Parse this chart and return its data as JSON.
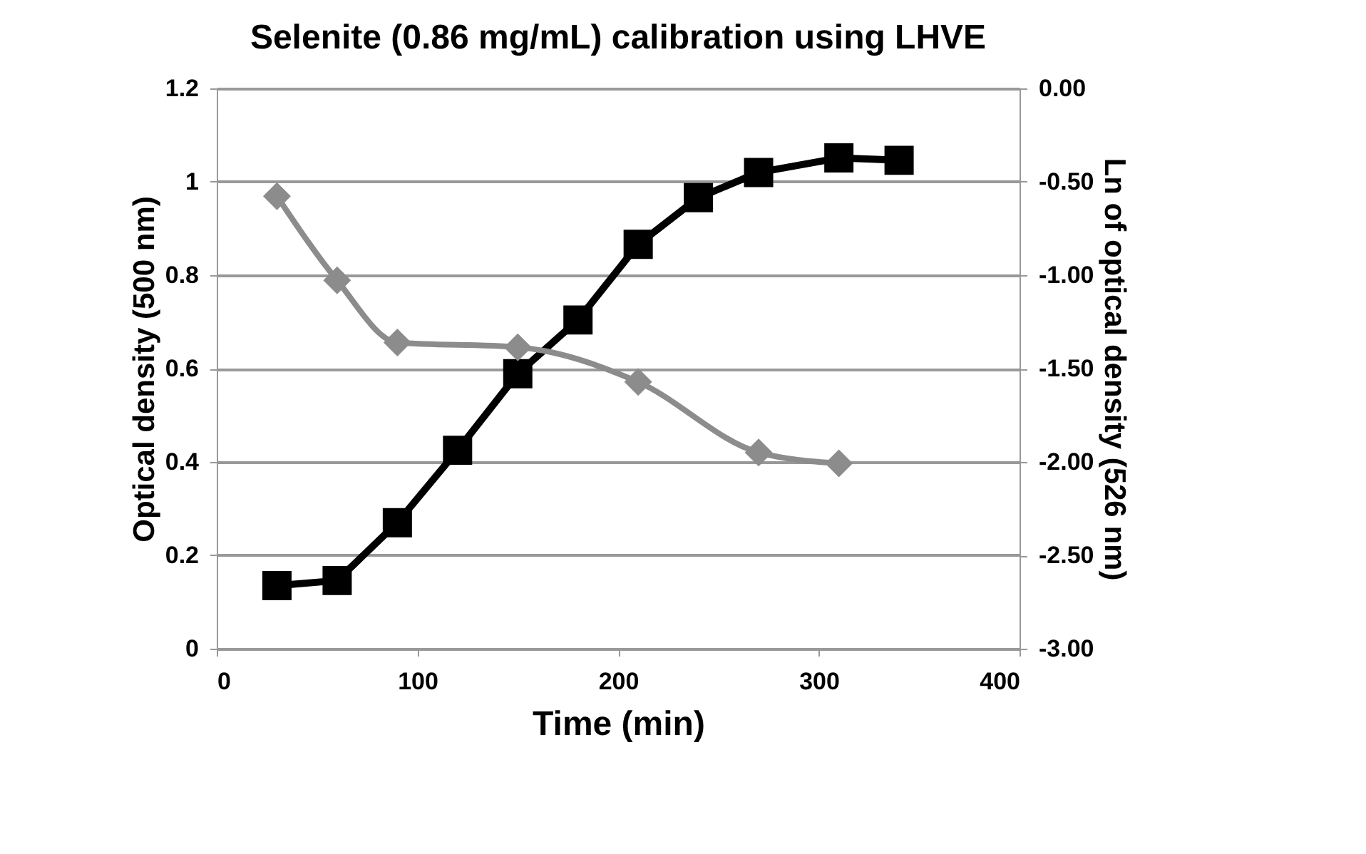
{
  "chart_data": {
    "type": "line",
    "title": "Selenite (0.86 mg/mL) calibration using LHVE",
    "xlabel": "Time (min)",
    "ylabel": "Optical density (500 nm)",
    "y2label": "Ln  of optical density (526 nm)",
    "xlim": [
      0,
      400
    ],
    "xticks": [
      0,
      100,
      200,
      300,
      400
    ],
    "ylim": [
      0,
      1.2
    ],
    "yticks": [
      0,
      0.2,
      0.4,
      0.6,
      0.8,
      1,
      1.2
    ],
    "y2lim": [
      -3,
      0
    ],
    "y2ticks": [
      {
        "value": -3,
        "label": "-3.00"
      },
      {
        "value": -2.5,
        "label": "-2.50"
      },
      {
        "value": -2,
        "label": "-2.00"
      },
      {
        "value": -1.5,
        "label": "-1.50"
      },
      {
        "value": -1,
        "label": "-1.00"
      },
      {
        "value": -0.5,
        "label": "-0.50"
      },
      {
        "value": 0,
        "label": "0.00"
      }
    ],
    "grid": "y",
    "legend": false,
    "line_style": "solid",
    "series": [
      {
        "color": "#000000",
        "marker": "square",
        "x": [
          30,
          60,
          90,
          120,
          150,
          180,
          210,
          240,
          270,
          310,
          340
        ],
        "values": [
          0.135,
          0.146,
          0.27,
          0.425,
          0.589,
          0.704,
          0.866,
          0.966,
          1.02,
          1.051,
          1.046
        ]
      },
      {
        "color": "#8c8c8c",
        "marker": "diamond",
        "axis": "y2",
        "x": [
          30,
          60,
          90,
          150,
          210,
          270,
          310
        ],
        "values": [
          -0.577,
          -1.028,
          -1.361,
          -1.386,
          -1.572,
          -1.949,
          -2.008
        ]
      }
    ]
  }
}
